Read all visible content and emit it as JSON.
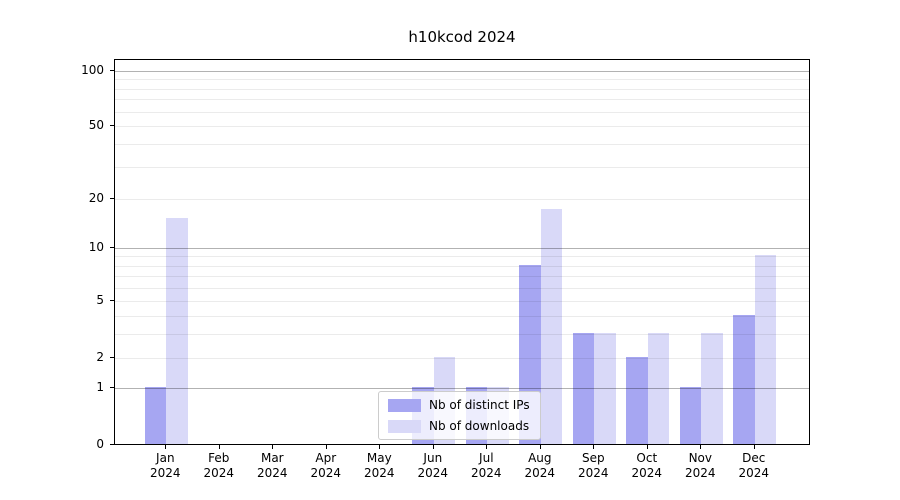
{
  "chart_data": {
    "type": "bar",
    "title": "h10kcod 2024",
    "categories": [
      "Jan 2024",
      "Feb 2024",
      "Mar 2024",
      "Apr 2024",
      "May 2024",
      "Jun 2024",
      "Jul 2024",
      "Aug 2024",
      "Sep 2024",
      "Oct 2024",
      "Nov 2024",
      "Dec 2024"
    ],
    "series": [
      {
        "name": "Nb of distinct IPs",
        "color": "#a6a6f2",
        "values": [
          1,
          0,
          0,
          0,
          0,
          1,
          1,
          8,
          3,
          2,
          1,
          4
        ]
      },
      {
        "name": "Nb of downloads",
        "color": "#d9d9f8",
        "values": [
          15,
          0,
          0,
          0,
          0,
          2,
          1,
          17,
          3,
          3,
          3,
          9
        ]
      }
    ],
    "yscale": "log10(1+v)",
    "ylim": [
      0,
      118
    ],
    "y_ticks": [
      0,
      1,
      2,
      5,
      10,
      20,
      50,
      100
    ],
    "y_major_gridlines": [
      1,
      10,
      100
    ],
    "y_minor_gridlines": [
      2,
      3,
      4,
      5,
      6,
      7,
      8,
      9,
      20,
      30,
      40,
      50,
      60,
      70,
      80,
      90
    ],
    "grid": "on",
    "legend_position": "lower center"
  },
  "colors": {
    "major_grid": "rgba(0,0,0,0.30)",
    "minor_grid": "rgba(0,0,0,0.08)",
    "axis": "#000000",
    "background": "#ffffff"
  }
}
